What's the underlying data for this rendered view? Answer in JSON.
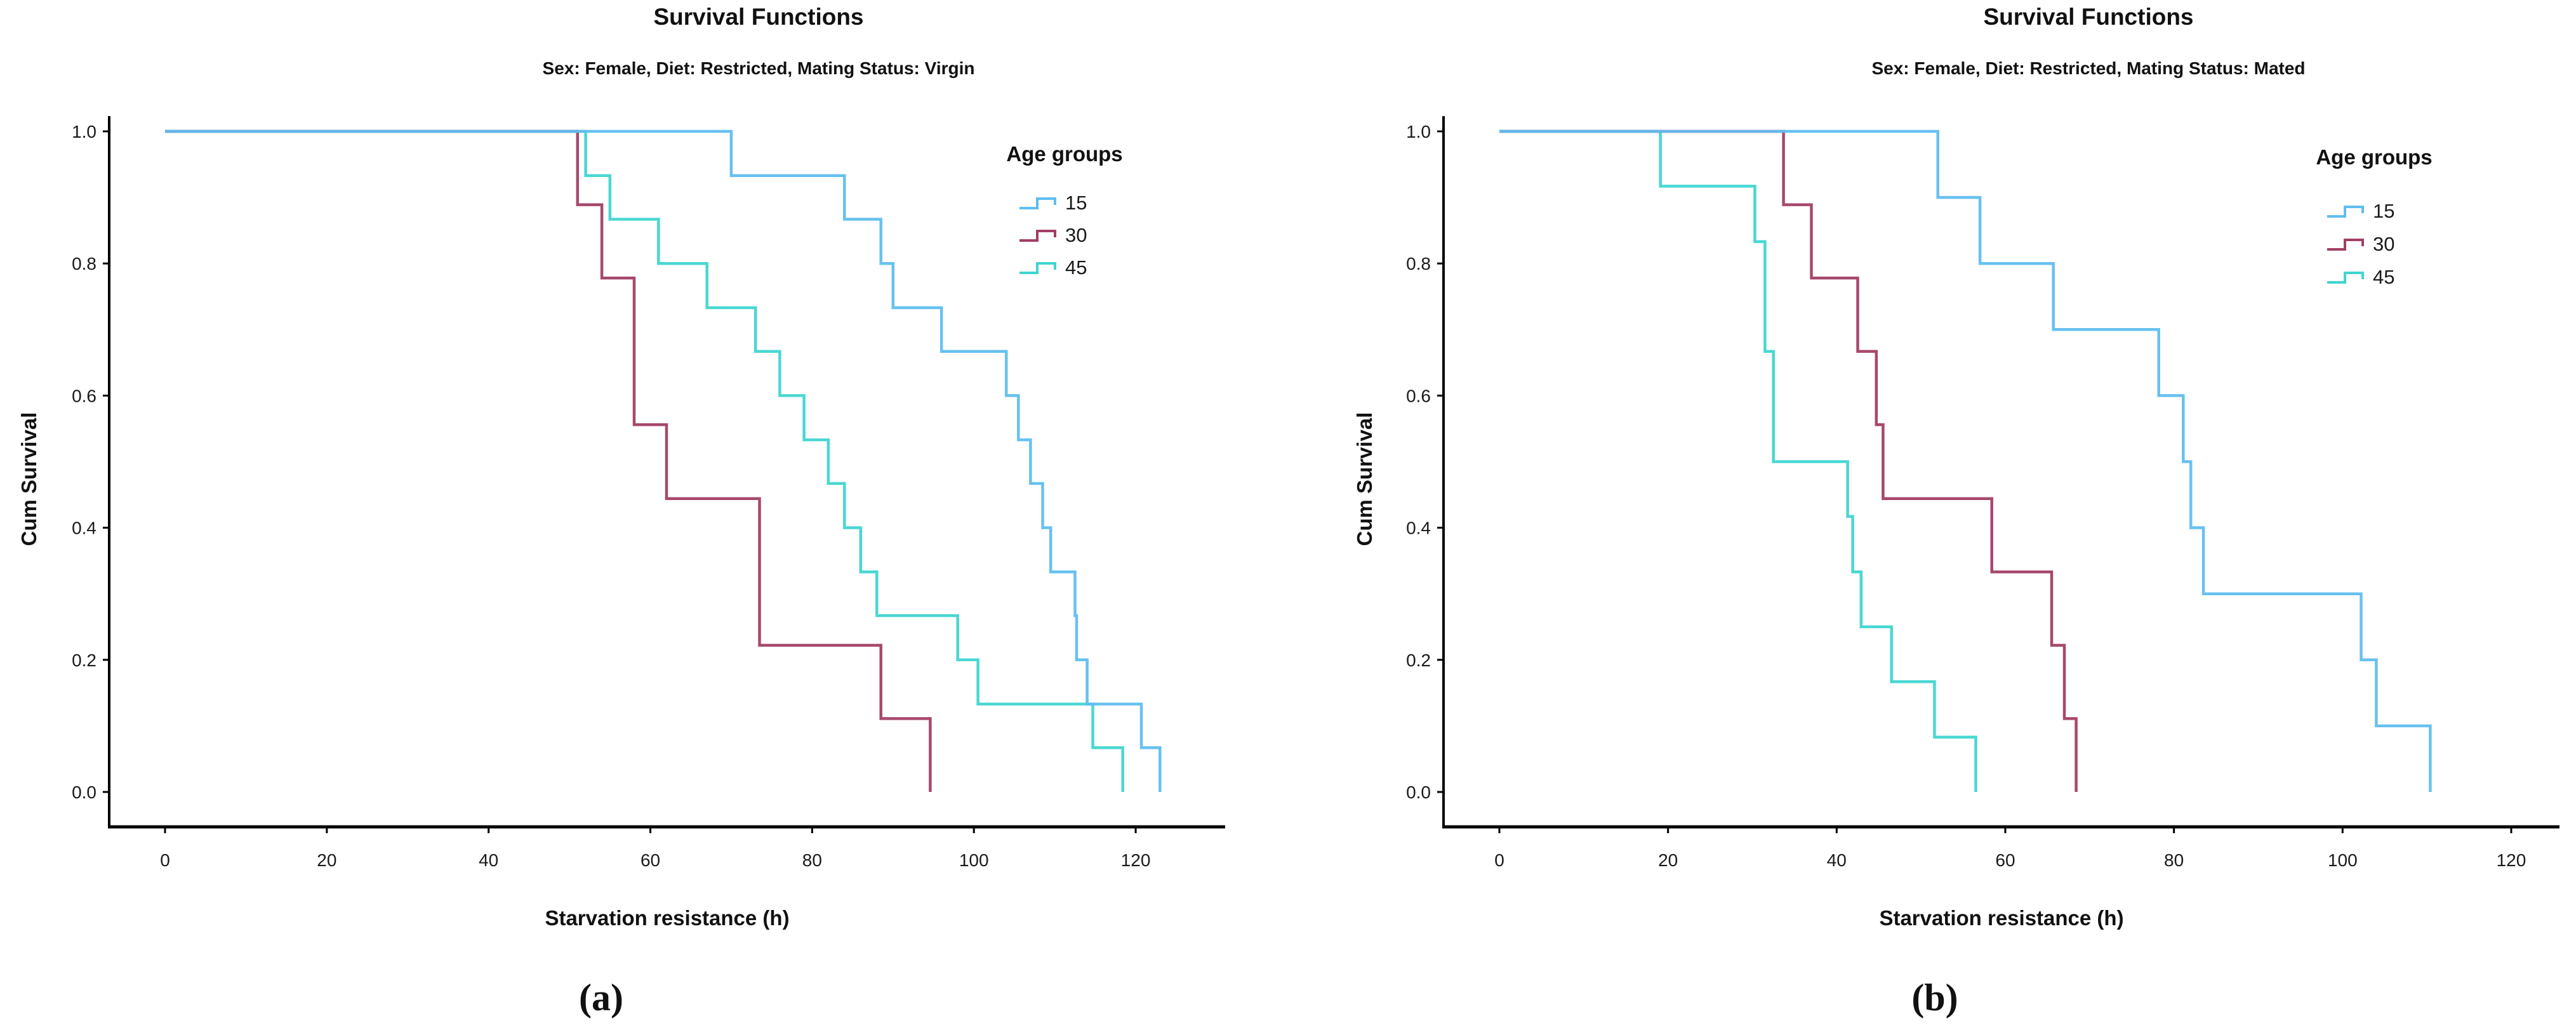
{
  "page": {
    "background": "#ffffff"
  },
  "captions": {
    "a": "(a)",
    "b": "(b)"
  },
  "palette": {
    "age15": "#5FBEEF",
    "age30": "#A23E65",
    "age45": "#3FD5D1",
    "axis": "#000000",
    "text": "#1a1a1a"
  },
  "chart_data": [
    {
      "type": "line",
      "subtype": "kaplan-meier-step-survival",
      "panel": "a",
      "title": "Survival Functions",
      "subtitle": "Sex: Female, Diet: Restricted, Mating Status: Virgin",
      "xlabel": "Starvation resistance (h)",
      "ylabel": "Cum Survival",
      "legend_title": "Age groups",
      "xlim": [
        0,
        130
      ],
      "ylim": [
        0,
        1
      ],
      "xticks": [
        0,
        20,
        40,
        60,
        80,
        100,
        120
      ],
      "ytick_labels": [
        "0.0",
        "0.2",
        "0.4",
        "0.6",
        "0.8",
        "1.0"
      ],
      "grid": false,
      "legend_position": "upper-right-inside",
      "series": [
        {
          "name": "15",
          "color_key": "age15",
          "start": [
            0,
            1.0
          ],
          "drops": [
            [
              70,
              0.933
            ],
            [
              84,
              0.867
            ],
            [
              88.5,
              0.8
            ],
            [
              90,
              0.733
            ],
            [
              96,
              0.667
            ],
            [
              104,
              0.6
            ],
            [
              105.5,
              0.533
            ],
            [
              107,
              0.467
            ],
            [
              108.5,
              0.4
            ],
            [
              109.5,
              0.333
            ],
            [
              112.5,
              0.267
            ],
            [
              112.7,
              0.2
            ],
            [
              114,
              0.133
            ],
            [
              120.7,
              0.067
            ],
            [
              123,
              0
            ]
          ]
        },
        {
          "name": "30",
          "color_key": "age30",
          "start": [
            0,
            1.0
          ],
          "drops": [
            [
              51,
              0.889
            ],
            [
              54,
              0.778
            ],
            [
              58,
              0.556
            ],
            [
              62,
              0.444
            ],
            [
              73.5,
              0.222
            ],
            [
              88.5,
              0.111
            ],
            [
              94.6,
              0
            ]
          ]
        },
        {
          "name": "45",
          "color_key": "age45",
          "start": [
            0,
            1.0
          ],
          "drops": [
            [
              52,
              0.933
            ],
            [
              55,
              0.867
            ],
            [
              61,
              0.8
            ],
            [
              67,
              0.733
            ],
            [
              73,
              0.667
            ],
            [
              76,
              0.6
            ],
            [
              79,
              0.533
            ],
            [
              82,
              0.467
            ],
            [
              84,
              0.4
            ],
            [
              86,
              0.333
            ],
            [
              88,
              0.267
            ],
            [
              98,
              0.2
            ],
            [
              100.5,
              0.133
            ],
            [
              114.7,
              0.067
            ],
            [
              118.4,
              0
            ]
          ]
        }
      ]
    },
    {
      "type": "line",
      "subtype": "kaplan-meier-step-survival",
      "panel": "b",
      "title": "Survival Functions",
      "subtitle": "Sex: Female, Diet: Restricted, Mating Status: Mated",
      "xlabel": "Starvation resistance (h)",
      "ylabel": "Cum Survival",
      "legend_title": "Age groups",
      "xlim": [
        0,
        125
      ],
      "ylim": [
        0,
        1
      ],
      "xticks": [
        0,
        20,
        40,
        60,
        80,
        100,
        120
      ],
      "ytick_labels": [
        "0.0",
        "0.2",
        "0.4",
        "0.6",
        "0.8",
        "1.0"
      ],
      "grid": false,
      "legend_position": "upper-right-inside",
      "series": [
        {
          "name": "15",
          "color_key": "age15",
          "start": [
            0,
            1.0
          ],
          "drops": [
            [
              52,
              0.9
            ],
            [
              57,
              0.8
            ],
            [
              65.7,
              0.7
            ],
            [
              78.2,
              0.6
            ],
            [
              81.1,
              0.5
            ],
            [
              82,
              0.4
            ],
            [
              83.5,
              0.3
            ],
            [
              102.2,
              0.2
            ],
            [
              104,
              0.1
            ],
            [
              110.4,
              0
            ]
          ]
        },
        {
          "name": "30",
          "color_key": "age30",
          "start": [
            0,
            1.0
          ],
          "drops": [
            [
              33.7,
              0.889
            ],
            [
              37,
              0.778
            ],
            [
              42.5,
              0.667
            ],
            [
              44.7,
              0.556
            ],
            [
              45.5,
              0.444
            ],
            [
              58.4,
              0.333
            ],
            [
              65.5,
              0.222
            ],
            [
              67,
              0.111
            ],
            [
              68.4,
              0
            ]
          ]
        },
        {
          "name": "45",
          "color_key": "age45",
          "start": [
            0,
            1.0
          ],
          "drops": [
            [
              19.1,
              0.917
            ],
            [
              30.3,
              0.833
            ],
            [
              31.5,
              0.667
            ],
            [
              32.5,
              0.5
            ],
            [
              41.3,
              0.417
            ],
            [
              41.9,
              0.333
            ],
            [
              42.9,
              0.25
            ],
            [
              46.5,
              0.167
            ],
            [
              51.6,
              0.083
            ],
            [
              56.5,
              0
            ]
          ]
        }
      ]
    }
  ]
}
